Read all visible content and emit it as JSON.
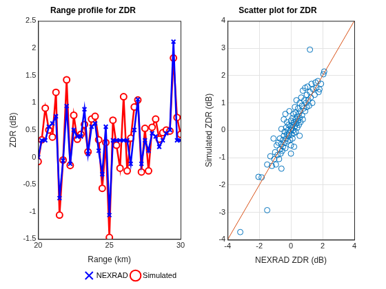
{
  "chart_data": [
    {
      "type": "line",
      "title": "Range profile for ZDR",
      "xlabel": "Range (km)",
      "ylabel": "ZDR (dB)",
      "x": [
        20.0,
        20.25,
        20.5,
        20.75,
        21.0,
        21.25,
        21.5,
        21.75,
        22.0,
        22.25,
        22.5,
        22.75,
        23.0,
        23.25,
        23.5,
        23.75,
        24.0,
        24.25,
        24.5,
        24.75,
        25.0,
        25.25,
        25.5,
        25.75,
        26.0,
        26.25,
        26.5,
        26.75,
        27.0,
        27.25,
        27.5,
        27.75,
        28.0,
        28.25,
        28.5,
        28.75,
        29.0,
        29.25,
        29.5,
        29.75,
        30.0
      ],
      "series": [
        {
          "name": "NEXRAD",
          "color": "#0000ff",
          "marker": "x",
          "values": [
            0.0,
            0.31,
            0.31,
            0.56,
            0.62,
            0.75,
            -0.75,
            -0.06,
            0.94,
            -0.12,
            0.5,
            0.38,
            0.38,
            0.88,
            0.06,
            0.56,
            0.62,
            0.12,
            -0.31,
            0.56,
            -1.06,
            0.31,
            0.31,
            0.31,
            0.31,
            0.31,
            -0.12,
            0.5,
            1.06,
            -0.12,
            0.31,
            0.12,
            0.44,
            0.38,
            0.19,
            0.31,
            0.44,
            0.5,
            2.12,
            0.31,
            0.31
          ]
        },
        {
          "name": "Simulated",
          "color": "#ff0000",
          "marker": "circle",
          "values": [
            -0.08,
            0.32,
            0.9,
            0.5,
            0.37,
            1.19,
            -1.06,
            -0.05,
            1.42,
            -0.15,
            0.77,
            0.33,
            0.42,
            0.6,
            0.1,
            0.7,
            0.75,
            0.32,
            -0.57,
            0.27,
            -1.47,
            0.68,
            0.22,
            -0.2,
            1.11,
            -0.25,
            0.35,
            0.92,
            1.05,
            -0.27,
            0.53,
            -0.25,
            0.55,
            0.7,
            0.33,
            0.45,
            0.5,
            0.48,
            1.82,
            0.73,
            0.42
          ]
        }
      ],
      "xlim": [
        20,
        30
      ],
      "xticks": [
        20,
        25,
        30
      ],
      "ylim": [
        -1.5,
        2.5
      ],
      "yticks": [
        -1.5,
        -1,
        -0.5,
        0,
        0.5,
        1,
        1.5,
        2,
        2.5
      ],
      "grid": false,
      "legend": "southeast"
    },
    {
      "type": "scatter",
      "title": "Scatter plot for ZDR",
      "xlabel": "NEXRAD ZDR (dB)",
      "ylabel": "Simulated ZDR (dB)",
      "color": "#0072bd",
      "marker": "circle",
      "x": [
        -3.2,
        -1.85,
        -1.5,
        -1.5,
        -1.3,
        -1.2,
        -1.1,
        -1.05,
        -1.0,
        -0.95,
        -0.9,
        -0.85,
        -0.8,
        -0.75,
        -0.7,
        -0.7,
        -0.65,
        -0.6,
        -0.6,
        -0.55,
        -0.5,
        -0.5,
        -0.45,
        -0.45,
        -0.4,
        -0.4,
        -0.35,
        -0.3,
        -0.3,
        -0.25,
        -0.25,
        -0.2,
        -0.2,
        -0.15,
        -0.15,
        -0.1,
        -0.1,
        -0.05,
        -0.05,
        0.0,
        0.0,
        0.0,
        0.05,
        0.05,
        0.1,
        0.1,
        0.1,
        0.15,
        0.15,
        0.2,
        0.2,
        0.25,
        0.25,
        0.3,
        0.3,
        0.3,
        0.35,
        0.35,
        0.4,
        0.4,
        0.45,
        0.45,
        0.5,
        0.5,
        0.55,
        0.55,
        0.6,
        0.6,
        0.65,
        0.7,
        0.7,
        0.75,
        0.75,
        0.8,
        0.85,
        0.9,
        0.9,
        0.95,
        1.0,
        1.0,
        1.05,
        1.1,
        1.15,
        1.2,
        1.2,
        1.25,
        1.3,
        1.35,
        1.4,
        1.5,
        1.55,
        1.6,
        1.7,
        1.75,
        1.8,
        1.9,
        2.05,
        2.1,
        -2.05,
        -0.6,
        0.2,
        0.0,
        -0.35,
        0.55
      ],
      "values": [
        -3.72,
        -1.72,
        -2.92,
        -1.25,
        -0.95,
        -1.3,
        -0.3,
        -1.05,
        -0.8,
        -1.25,
        -0.55,
        -0.9,
        -0.45,
        -1.05,
        -0.7,
        -0.3,
        -0.85,
        -0.5,
        0.05,
        -0.75,
        -0.35,
        -0.6,
        -0.2,
        0.4,
        -0.45,
        -0.05,
        -0.65,
        -0.3,
        0.1,
        -0.15,
        0.3,
        -0.4,
        0.0,
        0.2,
        -0.2,
        0.7,
        -0.1,
        0.15,
        -0.35,
        0.0,
        0.35,
        -0.55,
        0.1,
        -0.15,
        0.45,
        0.2,
        -0.3,
        0.0,
        0.6,
        0.3,
        -0.1,
        0.85,
        0.15,
        0.4,
        -0.05,
        0.65,
        0.25,
        1.1,
        0.5,
        0.1,
        0.8,
        0.35,
        0.6,
        0.2,
        1.0,
        0.45,
        0.7,
        0.3,
        1.2,
        0.55,
        0.9,
        1.45,
        0.4,
        0.8,
        1.1,
        1.55,
        0.7,
        1.0,
        1.3,
        0.85,
        1.6,
        1.1,
        0.9,
        2.95,
        1.4,
        1.2,
        1.7,
        1.0,
        1.5,
        1.3,
        1.75,
        1.55,
        1.8,
        1.4,
        1.5,
        1.7,
        2.05,
        2.15,
        -1.7,
        -1.4,
        -0.6,
        -0.85,
        0.6,
        -0.2
      ],
      "xlim": [
        -4,
        4
      ],
      "xticks": [
        -4,
        -2,
        0,
        2,
        4
      ],
      "ylim": [
        -4,
        4
      ],
      "yticks": [
        -4,
        -3,
        -2,
        -1,
        0,
        1,
        2,
        3,
        4
      ],
      "grid": true
    }
  ]
}
